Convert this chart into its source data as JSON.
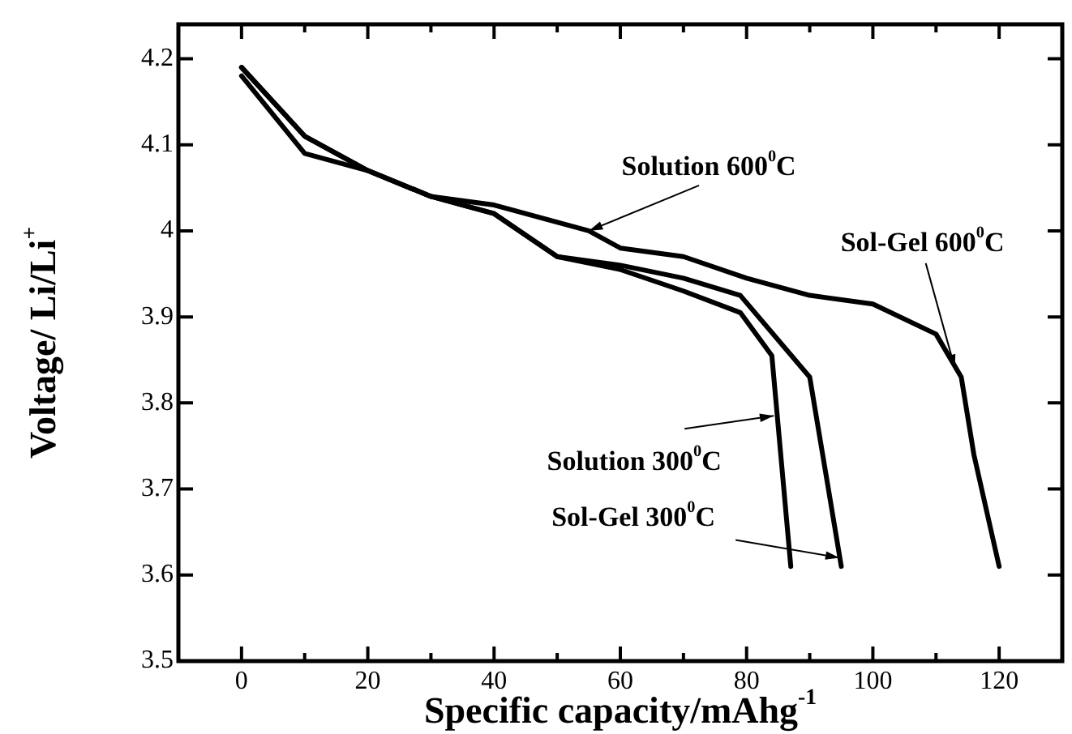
{
  "chart_data": {
    "type": "line",
    "xlabel": "Specific capacity/mAhg$^{-1}$",
    "ylabel": "Voltage/ Li/Li$^{+}$",
    "xlim": [
      -10,
      130
    ],
    "xticks": [
      0,
      {
        "value": 10,
        "label": null
      },
      20,
      {
        "value": 30,
        "label": null
      },
      40,
      {
        "value": 50,
        "label": null
      },
      60,
      {
        "value": 70,
        "label": null
      },
      80,
      {
        "value": 90,
        "label": null
      },
      100,
      {
        "value": 110,
        "label": null
      },
      120
    ],
    "ylim": [
      3.5,
      4.24
    ],
    "yticks": [
      3.5,
      3.6,
      3.7,
      3.8,
      3.9,
      4.0,
      4.1,
      4.2
    ],
    "marker": "none",
    "line_style": "solid",
    "series": [
      {
        "color": "#000000",
        "x": [
          0,
          10,
          20,
          30,
          40,
          55,
          60,
          70,
          80,
          90,
          100,
          110,
          114,
          116,
          120
        ],
        "values": [
          4.18,
          4.09,
          4.07,
          4.04,
          4.03,
          4.0,
          3.98,
          3.97,
          3.945,
          3.925,
          3.915,
          3.88,
          3.83,
          3.74,
          3.61
        ]
      },
      {
        "color": "#000000",
        "x": [
          0,
          10,
          20,
          30,
          40,
          50,
          60,
          70,
          79,
          90,
          95
        ],
        "values": [
          4.19,
          4.11,
          4.07,
          4.04,
          4.02,
          3.97,
          3.96,
          3.945,
          3.925,
          3.83,
          3.61
        ]
      },
      {
        "color": "#000000",
        "x": [
          0,
          10,
          20,
          30,
          40,
          50,
          60,
          70,
          79,
          84,
          87
        ],
        "values": [
          4.19,
          4.11,
          4.07,
          4.04,
          4.02,
          3.97,
          3.955,
          3.93,
          3.905,
          3.855,
          3.61
        ]
      }
    ],
    "annotations": [
      {
        "text": "Solution 600$^{0}$C",
        "x": 55,
        "y": 4.0
      },
      {
        "text": "Sol-Gel 600$^{0}$C",
        "x": 113,
        "y": 3.84
      },
      {
        "text": "Solution 300$^{0}$C",
        "x": 84.3,
        "y": 3.785
      },
      {
        "text": "Sol-Gel 300$^{0}$C",
        "x": 94.7,
        "y": 3.62
      }
    ]
  }
}
